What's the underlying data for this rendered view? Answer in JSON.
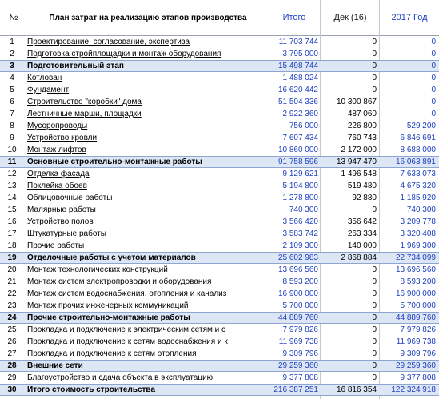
{
  "headers": {
    "num": "№",
    "name": "План затрат на реализацию этапов производства",
    "total": "Итого",
    "dec": "Дек (16)",
    "year": "2017 Год"
  },
  "rows": [
    {
      "num": "1",
      "name": "Проектирование, согласование, экспертиза",
      "total": "11 703 744",
      "dec": "0",
      "year": "0",
      "stage": false
    },
    {
      "num": "2",
      "name": "Подготовка стройплощадки и монтаж оборудования",
      "total": "3 795 000",
      "dec": "0",
      "year": "0",
      "stage": false
    },
    {
      "num": "3",
      "name": "Подготовительный этап",
      "total": "15 498 744",
      "dec": "0",
      "year": "0",
      "stage": true
    },
    {
      "num": "4",
      "name": "Котлован",
      "total": "1 488 024",
      "dec": "0",
      "year": "0",
      "stage": false
    },
    {
      "num": "5",
      "name": "Фундамент",
      "total": "16 620 442",
      "dec": "0",
      "year": "0",
      "stage": false
    },
    {
      "num": "6",
      "name": "Строительство \"коробки\" дома",
      "total": "51 504 336",
      "dec": "10 300 867",
      "year": "0",
      "stage": false
    },
    {
      "num": "7",
      "name": "Лестничные марши, площадки",
      "total": "2 922 360",
      "dec": "487 060",
      "year": "0",
      "stage": false
    },
    {
      "num": "8",
      "name": "Мусоропроводы",
      "total": "756 000",
      "dec": "226 800",
      "year": "529 200",
      "stage": false
    },
    {
      "num": "9",
      "name": "Устройство кровли",
      "total": "7 607 434",
      "dec": "760 743",
      "year": "6 846 691",
      "stage": false
    },
    {
      "num": "10",
      "name": "Монтаж лифтов",
      "total": "10 860 000",
      "dec": "2 172 000",
      "year": "8 688 000",
      "stage": false
    },
    {
      "num": "11",
      "name": "Основные строительно-монтажные работы",
      "total": "91 758 596",
      "dec": "13 947 470",
      "year": "16 063 891",
      "stage": true
    },
    {
      "num": "12",
      "name": "Отделка фасада",
      "total": "9 129 621",
      "dec": "1 496 548",
      "year": "7 633 073",
      "stage": false
    },
    {
      "num": "13",
      "name": "Поклейка обоев",
      "total": "5 194 800",
      "dec": "519 480",
      "year": "4 675 320",
      "stage": false
    },
    {
      "num": "14",
      "name": "Облицовочные работы",
      "total": "1 278 800",
      "dec": "92 880",
      "year": "1 185 920",
      "stage": false
    },
    {
      "num": "15",
      "name": "Малярные работы",
      "total": "740 300",
      "dec": "0",
      "year": "740 300",
      "stage": false
    },
    {
      "num": "16",
      "name": "Устройство полов",
      "total": "3 566 420",
      "dec": "356 642",
      "year": "3 209 778",
      "stage": false
    },
    {
      "num": "17",
      "name": "Штукатурные работы",
      "total": "3 583 742",
      "dec": "263 334",
      "year": "3 320 408",
      "stage": false
    },
    {
      "num": "18",
      "name": "Прочие работы",
      "total": "2 109 300",
      "dec": "140 000",
      "year": "1 969 300",
      "stage": false
    },
    {
      "num": "19",
      "name": "Отделочные работы с учетом материалов",
      "total": "25 602 983",
      "dec": "2 868 884",
      "year": "22 734 099",
      "stage": true
    },
    {
      "num": "20",
      "name": "Монтаж технологических конструкций",
      "total": "13 696 560",
      "dec": "0",
      "year": "13 696 560",
      "stage": false
    },
    {
      "num": "21",
      "name": "Монтаж систем электропроводки и оборудования",
      "total": "8 593 200",
      "dec": "0",
      "year": "8 593 200",
      "stage": false
    },
    {
      "num": "22",
      "name": "Монтаж систем водоснабжения, отопления и канализ",
      "total": "16 900 000",
      "dec": "0",
      "year": "16 900 000",
      "stage": false
    },
    {
      "num": "23",
      "name": "Монтаж прочих инженерных коммуникаций",
      "total": "5 700 000",
      "dec": "0",
      "year": "5 700 000",
      "stage": false
    },
    {
      "num": "24",
      "name": "Прочие строительно-монтажные работы",
      "total": "44 889 760",
      "dec": "0",
      "year": "44 889 760",
      "stage": true
    },
    {
      "num": "25",
      "name": "Прокладка и подключение к электрическим сетям и с",
      "total": "7 979 826",
      "dec": "0",
      "year": "7 979 826",
      "stage": false
    },
    {
      "num": "26",
      "name": "Прокладка и подключение к сетям водоснабжения и к",
      "total": "11 969 738",
      "dec": "0",
      "year": "11 969 738",
      "stage": false
    },
    {
      "num": "27",
      "name": "Прокладка и подключение к сетям отопления",
      "total": "9 309 796",
      "dec": "0",
      "year": "9 309 796",
      "stage": false
    },
    {
      "num": "28",
      "name": "Внешние сети",
      "total": "29 259 360",
      "dec": "0",
      "year": "29 259 360",
      "stage": true
    },
    {
      "num": "29",
      "name": "Благоустройство и сдача объекта в эксплуатацию",
      "total": "9 377 808",
      "dec": "0",
      "year": "9 377 808",
      "stage": false
    },
    {
      "num": "30",
      "name": "Итого стоимость строительства",
      "total": "216 387 251",
      "dec": "16 816 354",
      "year": "122 324 918",
      "stage": true
    }
  ]
}
